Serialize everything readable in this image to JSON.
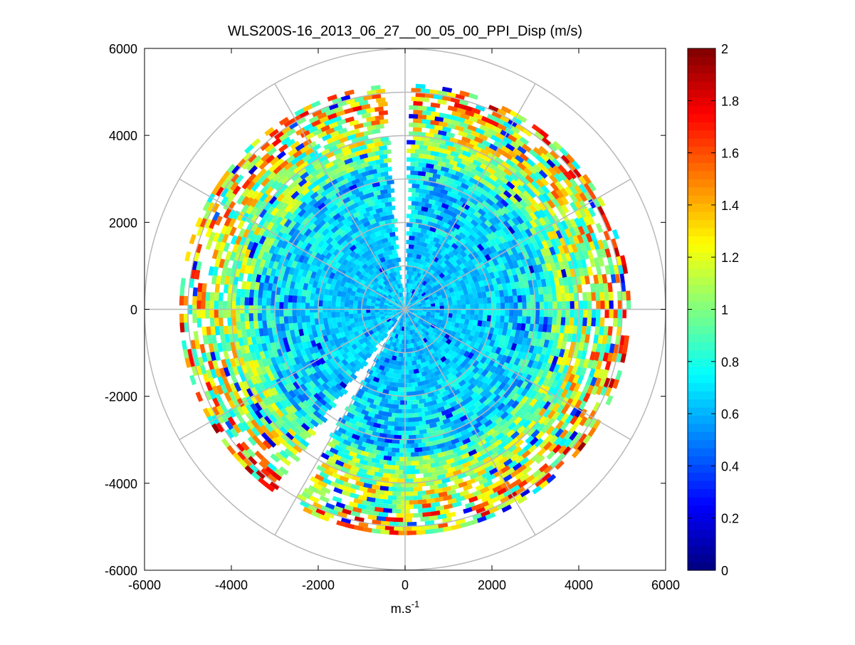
{
  "chart_data": {
    "type": "heatmap",
    "subtype": "polar-ppi",
    "title": "WLS200S-16_2013_06_27__00_05_00_PPI_Disp (m/s)",
    "xlabel_base": "m.s",
    "xlabel_exp": "-1",
    "ylabel": "",
    "xlim": [
      -6000,
      6000
    ],
    "ylim": [
      -6000,
      6000
    ],
    "xticks": [
      -6000,
      -4000,
      -2000,
      0,
      2000,
      4000,
      6000
    ],
    "yticks": [
      -6000,
      -4000,
      -2000,
      0,
      2000,
      4000,
      6000
    ],
    "xtick_labels": [
      "-6000",
      "-4000",
      "-2000",
      "0",
      "2000",
      "4000",
      "6000"
    ],
    "ytick_labels": [
      "-6000",
      "-4000",
      "-2000",
      "0",
      "2000",
      "4000",
      "6000"
    ],
    "polar_grid": {
      "rings_m": [
        1000,
        2000,
        3000,
        4000,
        5000,
        6000
      ],
      "spoke_step_deg": 30,
      "color": "#b8b8b8"
    },
    "data_range_m": [
      0,
      5200
    ],
    "gaps_deg": [
      {
        "center": 92,
        "width": 8,
        "note": "wedge near north"
      },
      {
        "center": 237,
        "width": 7,
        "note": "wedge toward south-southwest"
      }
    ],
    "radial_pattern": "values near 0.55-0.8 m/s close to center, rising to 1.0-2.0 m/s at far range",
    "colorbar": {
      "min": 0,
      "max": 2,
      "ticks": [
        0,
        0.2,
        0.4,
        0.6,
        0.8,
        1,
        1.2,
        1.4,
        1.6,
        1.8,
        2
      ],
      "tick_labels": [
        "0",
        "0.2",
        "0.4",
        "0.6",
        "0.8",
        "1",
        "1.2",
        "1.4",
        "1.6",
        "1.8",
        "2"
      ],
      "colormap": "jet"
    }
  }
}
